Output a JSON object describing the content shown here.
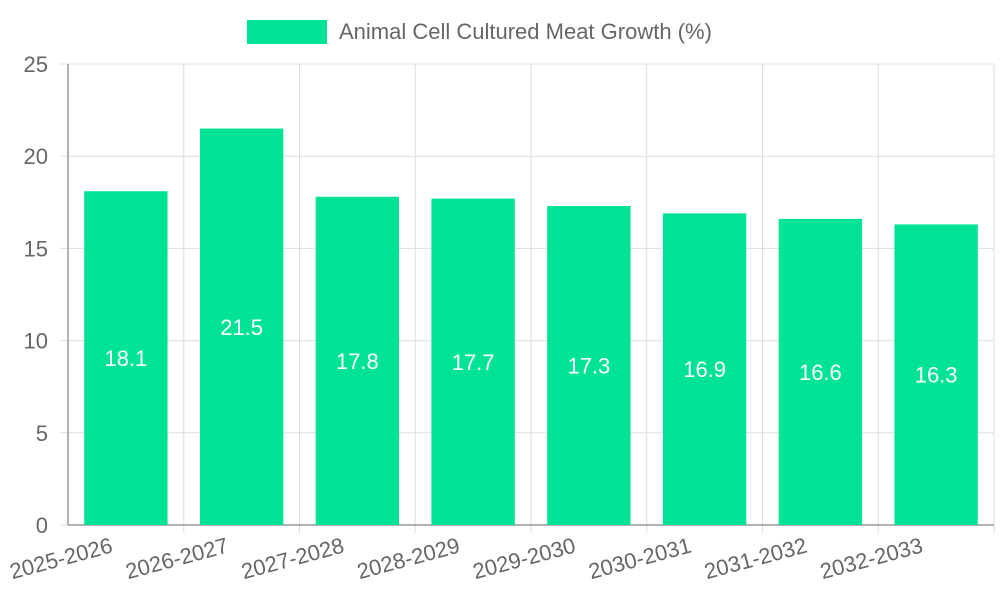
{
  "chart_data": {
    "type": "bar",
    "title": "",
    "xlabel": "",
    "ylabel": "",
    "ylim": [
      0,
      25
    ],
    "yticks": [
      "0",
      "5",
      "10",
      "15",
      "20",
      "25"
    ],
    "categories": [
      "2025-2026",
      "2026-2027",
      "2027-2028",
      "2028-2029",
      "2029-2030",
      "2030-2031",
      "2031-2032",
      "2032-2033"
    ],
    "series": [
      {
        "name": "Animal Cell Cultured Meat Growth (%)",
        "values": [
          18.1,
          21.5,
          17.8,
          17.7,
          17.3,
          16.9,
          16.6,
          16.3
        ]
      }
    ],
    "data_labels": [
      "18.1",
      "21.5",
      "17.8",
      "17.7",
      "17.3",
      "16.9",
      "16.6",
      "16.3"
    ],
    "legend_position": "top-center",
    "grid": true
  },
  "colors": {
    "bar": "#00e396",
    "grid": "#dddddd",
    "axis": "#999999",
    "text": "#666666"
  }
}
